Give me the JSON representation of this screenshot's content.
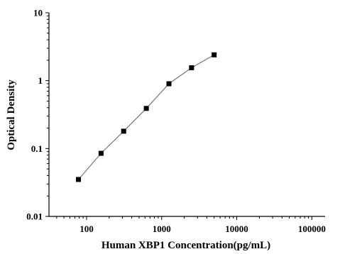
{
  "chart_data": {
    "type": "scatter",
    "title": "",
    "xlabel": "Human XBP1 Concentration(pg/mL)",
    "ylabel": "Optical Density",
    "xscale": "log",
    "yscale": "log",
    "xlim": [
      31.6,
      150000
    ],
    "ylim": [
      0.01,
      10
    ],
    "xticks": [
      "100",
      "1000",
      "10000",
      "100000"
    ],
    "yticks": [
      "0.01",
      "0.1",
      "1",
      "10"
    ],
    "grid": false,
    "legend": "none",
    "series": [
      {
        "x": [
          78,
          156,
          312,
          625,
          1250,
          2500,
          5000
        ],
        "y": [
          0.035,
          0.085,
          0.18,
          0.39,
          0.9,
          1.55,
          2.4
        ]
      }
    ]
  }
}
